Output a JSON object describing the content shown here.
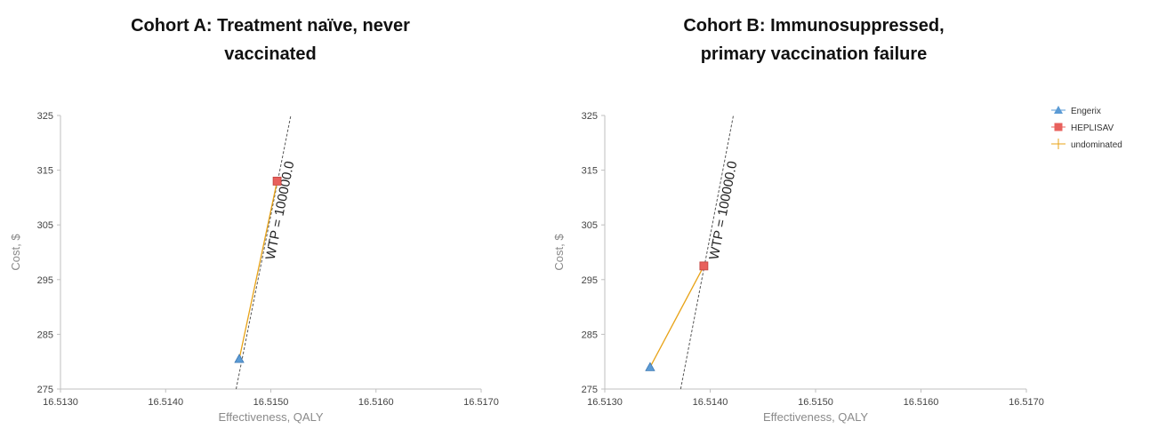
{
  "colors": {
    "engerix": "#5b9bd5",
    "heplisav": "#e8605c",
    "undominated": "#e8a317",
    "wtp_line": "#555555",
    "axis": "#bfbfbf"
  },
  "legend": {
    "placement": "top-right",
    "items": [
      {
        "label": "Engerix",
        "marker": "triangle",
        "color": "#5b9bd5"
      },
      {
        "label": "HEPLISAV",
        "marker": "square",
        "color": "#e8605c"
      },
      {
        "label": "undominated",
        "marker": "cross-line",
        "color": "#e8a317"
      }
    ]
  },
  "chart_data": [
    {
      "type": "scatter",
      "title": [
        "Cohort A: Treatment naïve, never",
        "vaccinated"
      ],
      "xlabel": "Effectiveness, QALY",
      "ylabel": "Cost, $",
      "xlim": [
        16.513,
        16.517
      ],
      "ylim": [
        275,
        325
      ],
      "xticks": [
        "16.5130",
        "16.5140",
        "16.5150",
        "16.5160",
        "16.5170"
      ],
      "yticks": [
        "275",
        "285",
        "295",
        "305",
        "315",
        "325"
      ],
      "grid": false,
      "series": [
        {
          "name": "Engerix",
          "x": [
            16.5147
          ],
          "y": [
            280.5
          ]
        },
        {
          "name": "HEPLISAV",
          "x": [
            16.51506
          ],
          "y": [
            313
          ]
        }
      ],
      "undominated": {
        "x": [
          16.5147,
          16.51506
        ],
        "y": [
          280.5,
          313
        ]
      },
      "wtp": {
        "label": "WTP = 100000.0",
        "x": [
          16.51467,
          16.51519
        ],
        "y": [
          275,
          325
        ]
      }
    },
    {
      "type": "scatter",
      "title": [
        "Cohort B: Immunosuppressed,",
        "primary vaccination failure"
      ],
      "xlabel": "Effectiveness, QALY",
      "ylabel": "Cost, $",
      "xlim": [
        16.513,
        16.517
      ],
      "ylim": [
        275,
        325
      ],
      "xticks": [
        "16.5130",
        "16.5140",
        "16.5150",
        "16.5160",
        "16.5170"
      ],
      "yticks": [
        "275",
        "285",
        "295",
        "305",
        "315",
        "325"
      ],
      "grid": false,
      "series": [
        {
          "name": "Engerix",
          "x": [
            16.51343
          ],
          "y": [
            279
          ]
        },
        {
          "name": "HEPLISAV",
          "x": [
            16.51394
          ],
          "y": [
            297.5
          ]
        }
      ],
      "undominated": {
        "x": [
          16.51343,
          16.51394
        ],
        "y": [
          279,
          297.5
        ]
      },
      "wtp": {
        "label": "WTP = 100000.0",
        "x": [
          16.51372,
          16.51422
        ],
        "y": [
          275,
          325
        ]
      }
    }
  ]
}
